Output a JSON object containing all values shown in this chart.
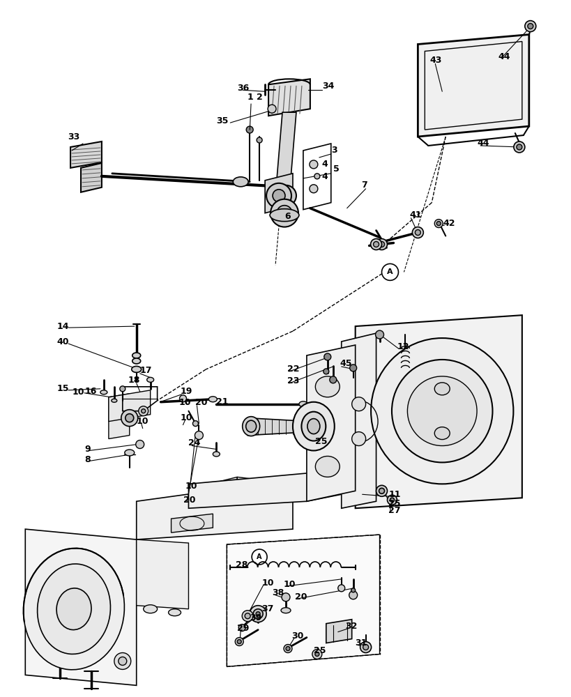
{
  "bg_color": "#ffffff",
  "line_color": "#000000",
  "figsize": [
    8.2,
    10.0
  ],
  "dpi": 100,
  "line_width": 1.0
}
